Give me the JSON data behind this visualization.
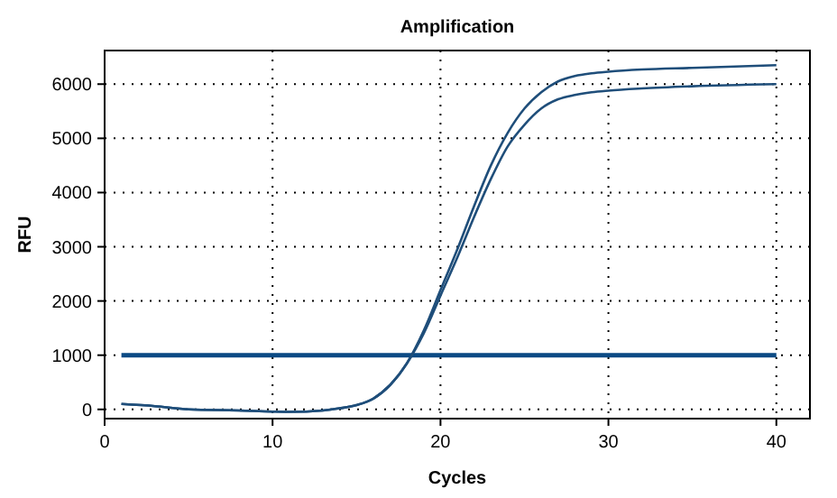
{
  "chart_data": {
    "type": "line",
    "title": "Amplification",
    "xlabel": "Cycles",
    "ylabel": "RFU",
    "x": [
      1,
      3,
      5,
      8,
      10,
      11,
      13,
      14,
      15,
      16,
      17,
      18,
      19,
      20,
      21,
      22,
      23,
      24,
      25,
      26,
      27,
      28,
      29,
      30,
      32,
      35,
      40
    ],
    "series": [
      {
        "color": "#1f4e7a",
        "values": [
          100,
          60,
          0,
          -20,
          -40,
          -45,
          -20,
          20,
          80,
          200,
          450,
          850,
          1450,
          2200,
          2950,
          3750,
          4500,
          5100,
          5550,
          5850,
          6050,
          6150,
          6200,
          6230,
          6270,
          6300,
          6350
        ]
      },
      {
        "color": "#1f4e7a",
        "values": [
          100,
          60,
          0,
          -20,
          -40,
          -45,
          -20,
          20,
          80,
          200,
          450,
          850,
          1400,
          2100,
          2800,
          3550,
          4250,
          4850,
          5250,
          5550,
          5720,
          5800,
          5850,
          5880,
          5920,
          5960,
          6000
        ]
      }
    ],
    "ref_lines": [
      {
        "axis": "y",
        "value": 1000,
        "color": "#0b4a84"
      }
    ],
    "xlim": [
      0,
      42
    ],
    "xticks": [
      0,
      10,
      20,
      30,
      40
    ],
    "ylim": [
      -170,
      6620
    ],
    "yticks": [
      0,
      1000,
      2000,
      3000,
      4000,
      5000,
      6000
    ],
    "grid": true,
    "marker": "none",
    "line_style": "solid"
  }
}
